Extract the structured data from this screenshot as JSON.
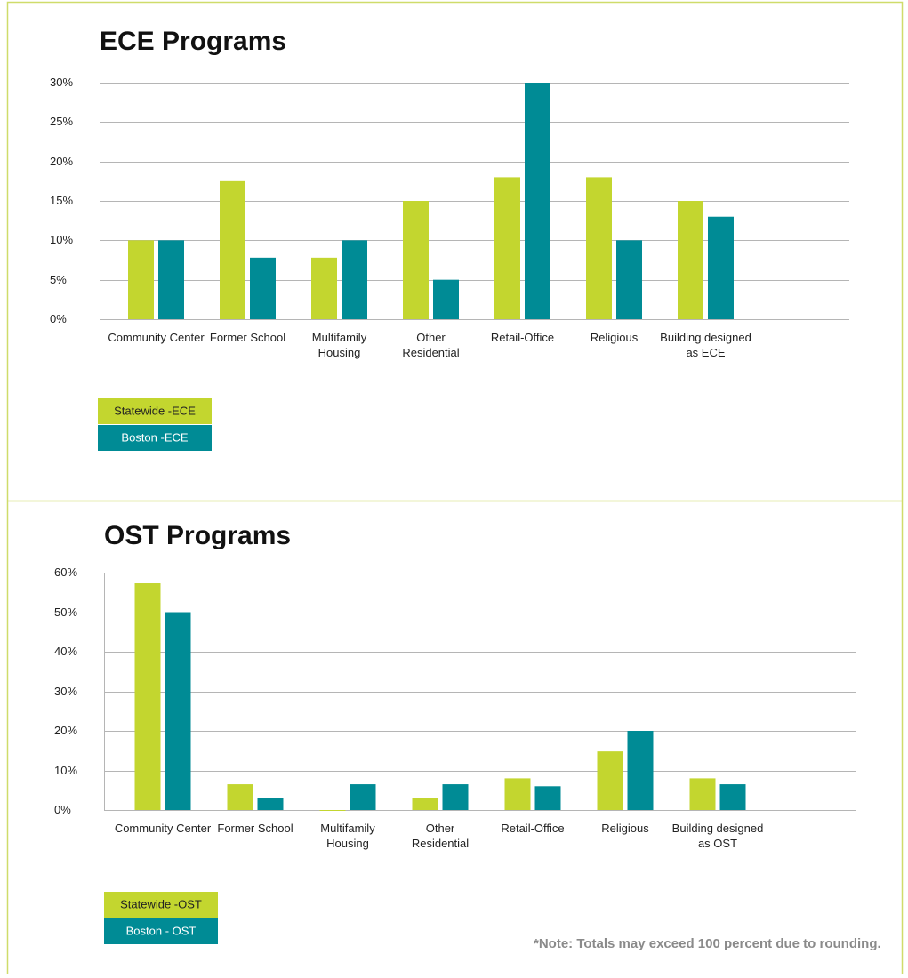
{
  "chart_data": [
    {
      "type": "bar",
      "title": "ECE Programs",
      "categories": [
        "Community Center",
        "Former School",
        "Multifamily\nHousing",
        "Other\nResidential",
        "Retail-Office",
        "Religious",
        "Building designed\nas ECE"
      ],
      "series": [
        {
          "name": "Statewide -ECE",
          "color": "#c3d62f",
          "values": [
            10,
            17.5,
            7.8,
            15,
            18,
            18,
            15
          ]
        },
        {
          "name": "Boston -ECE",
          "color": "#008b95",
          "values": [
            10,
            7.8,
            10,
            5,
            30,
            10,
            13
          ]
        }
      ],
      "ylim": [
        0,
        30
      ],
      "yticks": [
        {
          "value": 0,
          "label": "0%"
        },
        {
          "value": 5,
          "label": "5%"
        },
        {
          "value": 10,
          "label": "10%"
        },
        {
          "value": 15,
          "label": "15%"
        },
        {
          "value": 20,
          "label": "20%"
        },
        {
          "value": 25,
          "label": "25%"
        },
        {
          "value": 30,
          "label": "30%"
        }
      ],
      "grid": true
    },
    {
      "type": "bar",
      "title": "OST Programs",
      "categories": [
        "Community Center",
        "Former School",
        "Multifamily\nHousing",
        "Other\nResidential",
        "Retail-Office",
        "Religious",
        "Building designed\nas OST"
      ],
      "series": [
        {
          "name": "Statewide -OST",
          "color": "#c3d62f",
          "values": [
            57.3,
            6.5,
            0,
            3,
            8,
            14.8,
            8
          ]
        },
        {
          "name": "Boston - OST",
          "color": "#008b95",
          "values": [
            50,
            3,
            6.5,
            6.5,
            6,
            20,
            6.5
          ]
        }
      ],
      "ylim": [
        0,
        60
      ],
      "yticks": [
        {
          "value": 0,
          "label": "0%"
        },
        {
          "value": 10,
          "label": "10%"
        },
        {
          "value": 20,
          "label": "20%"
        },
        {
          "value": 30,
          "label": "30%"
        },
        {
          "value": 40,
          "label": "40%"
        },
        {
          "value": 50,
          "label": "50%"
        },
        {
          "value": 60,
          "label": "60%"
        }
      ],
      "grid": true
    }
  ],
  "note": "*Note: Totals may exceed 100 percent due to rounding."
}
